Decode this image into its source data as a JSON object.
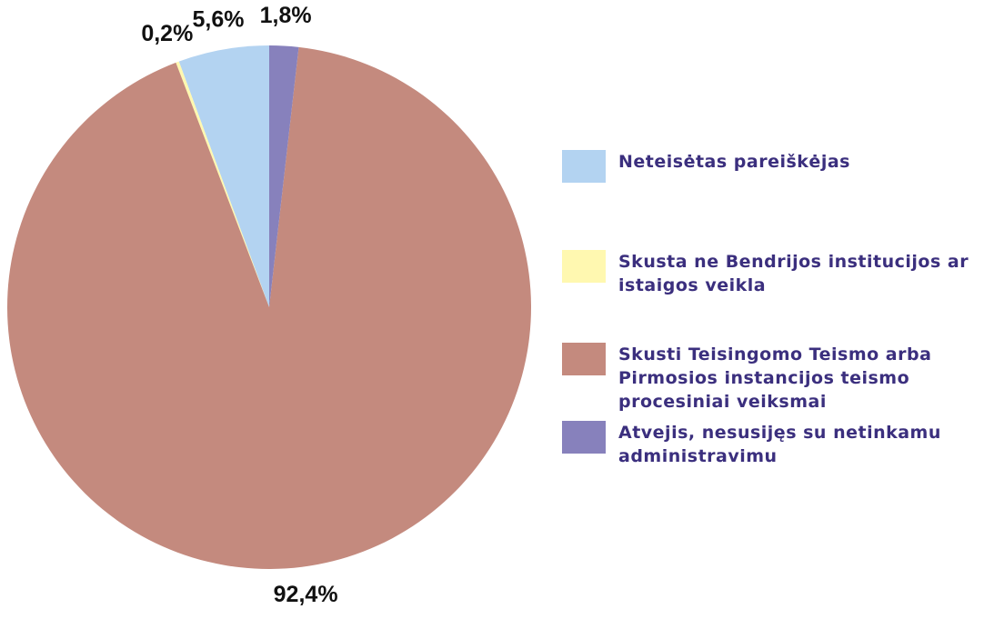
{
  "chart_data": {
    "type": "pie",
    "categories": [
      "Neteisėtas pareiškėjas",
      "Skusta ne Bendrijos institucijos ar istaigos veikla",
      "Skusti Teisingomo Teismo arba Pirmosios instancijos teismo procesiniai veiksmai",
      "Atvejis, nesusijęs su netinkamu administravimu"
    ],
    "values": [
      5.6,
      0.2,
      92.4,
      1.8
    ],
    "value_labels": [
      "5,6%",
      "0,2%",
      "92,4%",
      "1,8%"
    ],
    "colors": [
      "#b3d3f1",
      "#fff8b0",
      "#c48a7e",
      "#8781bc"
    ],
    "counterclockwise": true,
    "legend": "right"
  }
}
